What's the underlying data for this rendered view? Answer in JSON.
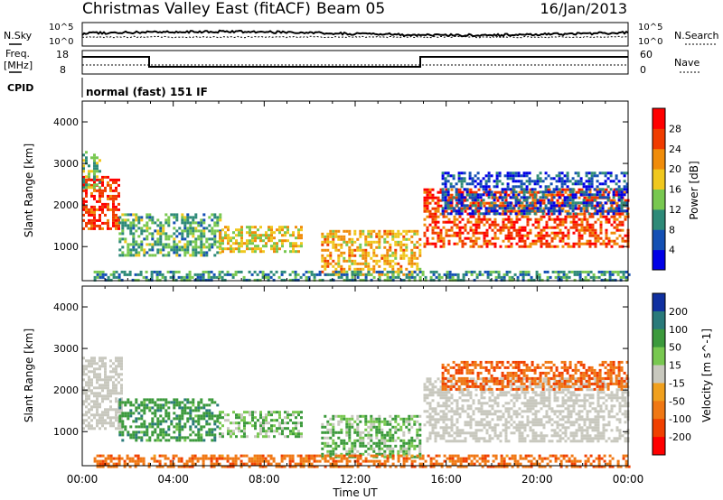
{
  "header": {
    "station": "Christmas Valley East (fitACF)",
    "beam": "Beam 05",
    "date": "16/Jan/2013"
  },
  "status_panels": {
    "nsky_label": "N.Sky",
    "nsearch_label": "N.Search",
    "noise_ticks": [
      "10^5",
      "10^0"
    ],
    "freq_label": "Freq.",
    "freq_unit": "[MHz]",
    "freq_ticks": [
      "18",
      "8"
    ],
    "nave_label": "Nave",
    "nave_ticks": [
      "60",
      "0"
    ],
    "cpid_label": "CPID",
    "cpid_value": "normal (fast) 151 IF"
  },
  "colors": {
    "power_scale": [
      "#0000e6",
      "#1450b4",
      "#2e8a78",
      "#78c850",
      "#f0c81e",
      "#f08c0a",
      "#f03c00",
      "#ff0000"
    ],
    "velocity_scale": [
      "#1030a0",
      "#2a7a7a",
      "#3c9a3c",
      "#78c850",
      "#c8c8be",
      "#f0a01e",
      "#f07814",
      "#f04000",
      "#ff0000"
    ],
    "ground_scatter": "#c8c8be"
  },
  "chart_data": [
    {
      "type": "heatmap",
      "panel": "power",
      "xlabel": "Time UT",
      "ylabel": "Slant Range [km]",
      "x_ticks": [
        "00:00",
        "04:00",
        "08:00",
        "12:00",
        "16:00",
        "20:00",
        "00:00"
      ],
      "xlim_hours": [
        0,
        24
      ],
      "y_ticks": [
        1000,
        2000,
        3000,
        4000
      ],
      "ylim_km": [
        180,
        4500
      ],
      "colorbar": {
        "label": "Power [dB]",
        "ticks": [
          4,
          8,
          12,
          16,
          20,
          24,
          28
        ],
        "range": [
          0,
          32
        ]
      },
      "regions": [
        {
          "t": [
            0,
            1.6
          ],
          "r": [
            1400,
            2700
          ],
          "level": 28
        },
        {
          "t": [
            0,
            0.8
          ],
          "r": [
            2400,
            3300
          ],
          "level": 14
        },
        {
          "t": [
            1.6,
            6.1
          ],
          "r": [
            800,
            1800
          ],
          "level": 12
        },
        {
          "t": [
            6.0,
            9.6
          ],
          "r": [
            900,
            1500
          ],
          "level": 18
        },
        {
          "t": [
            10.5,
            14.8
          ],
          "r": [
            300,
            1400
          ],
          "level": 20
        },
        {
          "t": [
            15.0,
            24.0
          ],
          "r": [
            1000,
            2400
          ],
          "level": 26
        },
        {
          "t": [
            15.8,
            24.0
          ],
          "r": [
            1800,
            2800
          ],
          "level": 6
        },
        {
          "t": [
            0.5,
            24.0
          ],
          "r": [
            180,
            420
          ],
          "level": 10
        }
      ]
    },
    {
      "type": "heatmap",
      "panel": "velocity",
      "xlabel": "Time UT",
      "ylabel": "Slant Range [km]",
      "x_ticks": [
        "00:00",
        "04:00",
        "08:00",
        "12:00",
        "16:00",
        "20:00",
        "00:00"
      ],
      "xlim_hours": [
        0,
        24
      ],
      "y_ticks": [
        1000,
        2000,
        3000,
        4000
      ],
      "ylim_km": [
        180,
        4500
      ],
      "colorbar": {
        "label": "Velocity [m s^-1]",
        "ticks": [
          200,
          100,
          50,
          15,
          -15,
          -50,
          -100,
          -200
        ],
        "range": [
          -250,
          250
        ]
      },
      "regions": [
        {
          "t": [
            0,
            1.7
          ],
          "r": [
            1100,
            2800
          ],
          "kind": "ground"
        },
        {
          "t": [
            1.6,
            6.0
          ],
          "r": [
            800,
            1800
          ],
          "velocity": 60
        },
        {
          "t": [
            6.0,
            9.6
          ],
          "r": [
            900,
            1500
          ],
          "velocity": 30
        },
        {
          "t": [
            10.5,
            14.8
          ],
          "r": [
            400,
            1400
          ],
          "velocity": 30
        },
        {
          "t": [
            15.0,
            24.0
          ],
          "r": [
            800,
            2300
          ],
          "kind": "ground"
        },
        {
          "t": [
            15.8,
            24.0
          ],
          "r": [
            2000,
            2700
          ],
          "velocity": -70
        },
        {
          "t": [
            0.5,
            24.0
          ],
          "r": [
            180,
            450
          ],
          "velocity": -60
        }
      ]
    }
  ]
}
